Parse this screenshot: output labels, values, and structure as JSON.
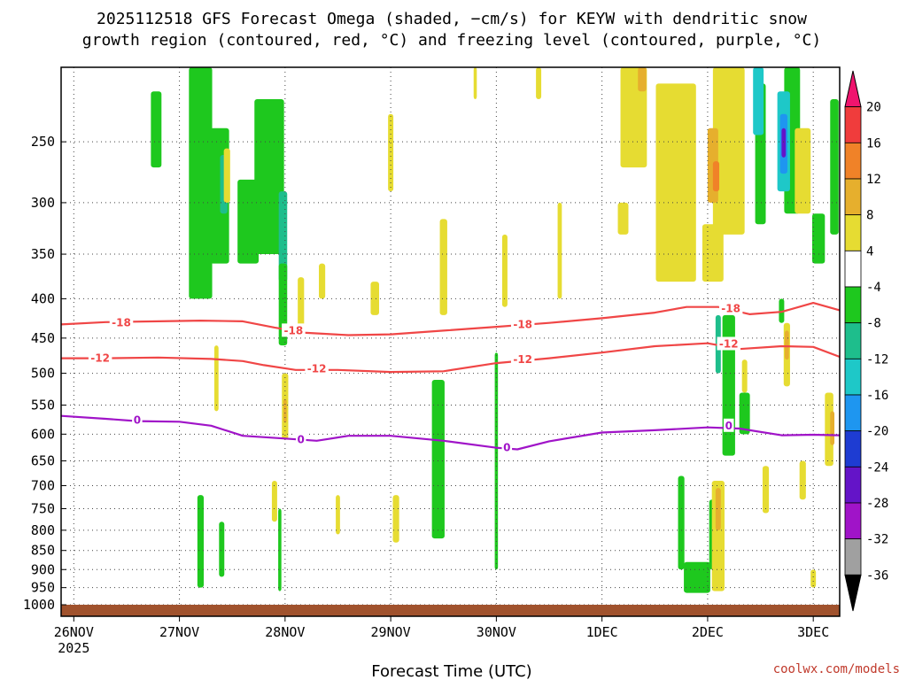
{
  "title_lines": [
    "2025112518 GFS Forecast Omega (shaded, −cm/s) for KEYW with dendritic snow",
    "growth region (contoured, red, °C) and freezing level (contoured, purple, °C)"
  ],
  "credit": "coolwx.com/models",
  "chart_data": {
    "type": "heatmap",
    "title": "2025112518 GFS Forecast Omega (shaded, −cm/s) for KEYW with dendritic snow growth region (contoured, red, °C) and freezing level (contoured, purple, °C)",
    "xlabel": "Forecast Time (UTC)",
    "ylabel": "",
    "x_ticks": [
      {
        "label": "26NOV",
        "sub": "2025",
        "day": 0
      },
      {
        "label": "27NOV",
        "day": 1
      },
      {
        "label": "28NOV",
        "day": 2
      },
      {
        "label": "29NOV",
        "day": 3
      },
      {
        "label": "30NOV",
        "day": 4
      },
      {
        "label": "1DEC",
        "day": 5
      },
      {
        "label": "2DEC",
        "day": 6
      },
      {
        "label": "3DEC",
        "day": 7
      }
    ],
    "xlim_days": [
      -0.12,
      7.25
    ],
    "y_ticks": [
      250,
      300,
      350,
      400,
      450,
      500,
      550,
      600,
      650,
      700,
      750,
      800,
      850,
      900,
      950,
      1000
    ],
    "ylim_hpa": [
      200,
      1000
    ],
    "y_scale": "log",
    "grid": true,
    "colorbar": {
      "labels": [
        20,
        16,
        12,
        8,
        4,
        -4,
        -8,
        -12,
        -16,
        -20,
        -24,
        -28,
        -32,
        -36
      ],
      "colors": [
        "#f0146e",
        "#f03c3c",
        "#f08228",
        "#e6af2d",
        "#e6dc32",
        "#ffffff",
        "#1ec81e",
        "#1ebe8c",
        "#1ec8c8",
        "#1e96f0",
        "#1e3cd2",
        "#6414c8",
        "#a014c8",
        "#a0a0a0",
        "#000000"
      ]
    },
    "contours": [
      {
        "level": -18,
        "color": "#f04646",
        "points": [
          [
            -0.12,
            432
          ],
          [
            0.3,
            429
          ],
          [
            0.8,
            428
          ],
          [
            1.2,
            427
          ],
          [
            1.6,
            428
          ],
          [
            1.9,
            436
          ],
          [
            2.2,
            443
          ],
          [
            2.6,
            446
          ],
          [
            3.0,
            445
          ],
          [
            3.5,
            440
          ],
          [
            4.0,
            435
          ],
          [
            4.5,
            430
          ],
          [
            5.0,
            424
          ],
          [
            5.5,
            417
          ],
          [
            5.8,
            410
          ],
          [
            6.1,
            410
          ],
          [
            6.4,
            419
          ],
          [
            6.7,
            416
          ],
          [
            7.0,
            405
          ],
          [
            7.25,
            414
          ]
        ]
      },
      {
        "level": -12,
        "color": "#f04646",
        "points": [
          [
            -0.12,
            478
          ],
          [
            0.3,
            478
          ],
          [
            0.8,
            477
          ],
          [
            1.3,
            479
          ],
          [
            1.6,
            482
          ],
          [
            1.8,
            488
          ],
          [
            2.1,
            495
          ],
          [
            2.5,
            495
          ],
          [
            3.0,
            498
          ],
          [
            3.5,
            497
          ],
          [
            4.0,
            485
          ],
          [
            4.5,
            478
          ],
          [
            5.0,
            470
          ],
          [
            5.5,
            461
          ],
          [
            6.0,
            457
          ],
          [
            6.3,
            465
          ],
          [
            6.7,
            461
          ],
          [
            7.0,
            462
          ],
          [
            7.25,
            476
          ]
        ]
      },
      {
        "level": 0,
        "color": "#a014c8",
        "points": [
          [
            -0.12,
            568
          ],
          [
            0.3,
            573
          ],
          [
            0.6,
            577
          ],
          [
            1.0,
            578
          ],
          [
            1.3,
            585
          ],
          [
            1.6,
            603
          ],
          [
            2.0,
            608
          ],
          [
            2.3,
            612
          ],
          [
            2.6,
            603
          ],
          [
            3.0,
            603
          ],
          [
            3.5,
            612
          ],
          [
            4.0,
            625
          ],
          [
            4.2,
            628
          ],
          [
            4.5,
            613
          ],
          [
            5.0,
            597
          ],
          [
            5.5,
            593
          ],
          [
            6.0,
            588
          ],
          [
            6.3,
            590
          ],
          [
            6.7,
            602
          ],
          [
            7.0,
            601
          ],
          [
            7.25,
            602
          ]
        ]
      }
    ],
    "contour_labels": [
      {
        "text": "-18",
        "day": 0.45,
        "p": 430,
        "color": "#f04646"
      },
      {
        "text": "-18",
        "day": 2.08,
        "p": 440,
        "color": "#f04646"
      },
      {
        "text": "-18",
        "day": 4.25,
        "p": 432,
        "color": "#f04646"
      },
      {
        "text": "-18",
        "day": 6.22,
        "p": 412,
        "color": "#f04646"
      },
      {
        "text": "-12",
        "day": 0.25,
        "p": 478,
        "color": "#f04646"
      },
      {
        "text": "-12",
        "day": 2.3,
        "p": 493,
        "color": "#f04646"
      },
      {
        "text": "-12",
        "day": 4.25,
        "p": 480,
        "color": "#f04646"
      },
      {
        "text": "-12",
        "day": 6.2,
        "p": 458,
        "color": "#f04646"
      },
      {
        "text": "0",
        "day": 0.6,
        "p": 575,
        "color": "#a014c8"
      },
      {
        "text": "0",
        "day": 2.15,
        "p": 610,
        "color": "#a014c8"
      },
      {
        "text": "0",
        "day": 4.1,
        "p": 625,
        "color": "#a014c8"
      },
      {
        "text": "0",
        "day": 6.2,
        "p": 585,
        "color": "#a014c8"
      }
    ],
    "shaded_regions": [
      {
        "color": "#1ec81e",
        "day": 1.2,
        "p1": 200,
        "p2": 400,
        "w": 0.22
      },
      {
        "color": "#1ec81e",
        "day": 1.85,
        "p1": 220,
        "p2": 350,
        "w": 0.28
      },
      {
        "color": "#1ec81e",
        "day": 1.38,
        "p1": 240,
        "p2": 360,
        "w": 0.18
      },
      {
        "color": "#1ebe8c",
        "day": 1.42,
        "p1": 260,
        "p2": 310,
        "w": 0.07
      },
      {
        "color": "#1ebe8c",
        "day": 1.98,
        "p1": 290,
        "p2": 380,
        "w": 0.08
      },
      {
        "color": "#1ec81e",
        "day": 1.65,
        "p1": 280,
        "p2": 360,
        "w": 0.2
      },
      {
        "color": "#1ec81e",
        "day": 0.78,
        "p1": 215,
        "p2": 270,
        "w": 0.1
      },
      {
        "color": "#1ec81e",
        "day": 1.98,
        "p1": 360,
        "p2": 460,
        "w": 0.08
      },
      {
        "color": "#1ec81e",
        "day": 3.45,
        "p1": 510,
        "p2": 820,
        "w": 0.12
      },
      {
        "color": "#1ec81e",
        "day": 4.0,
        "p1": 470,
        "p2": 900,
        "w": 0.03
      },
      {
        "color": "#1ec81e",
        "day": 1.2,
        "p1": 720,
        "p2": 950,
        "w": 0.06
      },
      {
        "color": "#1ec81e",
        "day": 1.4,
        "p1": 780,
        "p2": 920,
        "w": 0.05
      },
      {
        "color": "#1ec81e",
        "day": 1.95,
        "p1": 750,
        "p2": 960,
        "w": 0.03
      },
      {
        "color": "#1ec81e",
        "day": 5.75,
        "p1": 680,
        "p2": 900,
        "w": 0.06
      },
      {
        "color": "#1ec81e",
        "day": 5.9,
        "p1": 880,
        "p2": 965,
        "w": 0.25
      },
      {
        "color": "#1ec81e",
        "day": 6.05,
        "p1": 730,
        "p2": 900,
        "w": 0.07
      },
      {
        "color": "#1ec81e",
        "day": 6.2,
        "p1": 420,
        "p2": 640,
        "w": 0.12
      },
      {
        "color": "#1ec81e",
        "day": 6.35,
        "p1": 530,
        "p2": 600,
        "w": 0.1
      },
      {
        "color": "#1ec81e",
        "day": 6.5,
        "p1": 210,
        "p2": 320,
        "w": 0.1
      },
      {
        "color": "#1ec81e",
        "day": 6.8,
        "p1": 200,
        "p2": 310,
        "w": 0.15
      },
      {
        "color": "#1ec81e",
        "day": 7.05,
        "p1": 310,
        "p2": 360,
        "w": 0.12
      },
      {
        "color": "#1ec81e",
        "day": 7.2,
        "p1": 220,
        "p2": 330,
        "w": 0.08
      },
      {
        "color": "#1ec81e",
        "day": 6.7,
        "p1": 400,
        "p2": 430,
        "w": 0.05
      },
      {
        "color": "#1ebe8c",
        "day": 6.1,
        "p1": 420,
        "p2": 500,
        "w": 0.05
      },
      {
        "color": "#1ec8c8",
        "day": 6.48,
        "p1": 200,
        "p2": 245,
        "w": 0.1
      },
      {
        "color": "#1ec8c8",
        "day": 6.72,
        "p1": 215,
        "p2": 290,
        "w": 0.12
      },
      {
        "color": "#1e96f0",
        "day": 6.72,
        "p1": 230,
        "p2": 275,
        "w": 0.07
      },
      {
        "color": "#6414c8",
        "day": 6.72,
        "p1": 240,
        "p2": 262,
        "w": 0.04
      },
      {
        "color": "#e6dc32",
        "day": 1.45,
        "p1": 255,
        "p2": 300,
        "w": 0.06
      },
      {
        "color": "#e6dc32",
        "day": 2.15,
        "p1": 375,
        "p2": 440,
        "w": 0.06
      },
      {
        "color": "#e6dc32",
        "day": 2.35,
        "p1": 360,
        "p2": 400,
        "w": 0.06
      },
      {
        "color": "#e6dc32",
        "day": 2.85,
        "p1": 380,
        "p2": 420,
        "w": 0.08
      },
      {
        "color": "#e6dc32",
        "day": 3.5,
        "p1": 315,
        "p2": 420,
        "w": 0.07
      },
      {
        "color": "#e6dc32",
        "day": 3.0,
        "p1": 230,
        "p2": 290,
        "w": 0.05
      },
      {
        "color": "#e6dc32",
        "day": 4.08,
        "p1": 330,
        "p2": 410,
        "w": 0.05
      },
      {
        "color": "#e6dc32",
        "day": 4.4,
        "p1": 200,
        "p2": 220,
        "w": 0.05
      },
      {
        "color": "#e6dc32",
        "day": 4.6,
        "p1": 300,
        "p2": 400,
        "w": 0.04
      },
      {
        "color": "#e6dc32",
        "day": 3.8,
        "p1": 200,
        "p2": 220,
        "w": 0.03
      },
      {
        "color": "#e6dc32",
        "day": 1.35,
        "p1": 460,
        "p2": 560,
        "w": 0.04
      },
      {
        "color": "#e6dc32",
        "day": 2.0,
        "p1": 500,
        "p2": 610,
        "w": 0.06
      },
      {
        "color": "#e6dc32",
        "day": 3.05,
        "p1": 720,
        "p2": 830,
        "w": 0.06
      },
      {
        "color": "#e6dc32",
        "day": 1.9,
        "p1": 690,
        "p2": 780,
        "w": 0.05
      },
      {
        "color": "#e6dc32",
        "day": 2.5,
        "p1": 720,
        "p2": 810,
        "w": 0.04
      },
      {
        "color": "#e6dc32",
        "day": 5.3,
        "p1": 200,
        "p2": 270,
        "w": 0.25
      },
      {
        "color": "#e6dc32",
        "day": 5.7,
        "p1": 210,
        "p2": 380,
        "w": 0.38
      },
      {
        "color": "#e6dc32",
        "day": 6.2,
        "p1": 200,
        "p2": 330,
        "w": 0.3
      },
      {
        "color": "#e6dc32",
        "day": 6.05,
        "p1": 320,
        "p2": 380,
        "w": 0.2
      },
      {
        "color": "#e6dc32",
        "day": 6.9,
        "p1": 240,
        "p2": 310,
        "w": 0.15
      },
      {
        "color": "#e6dc32",
        "day": 5.2,
        "p1": 300,
        "p2": 330,
        "w": 0.1
      },
      {
        "color": "#e6dc32",
        "day": 6.9,
        "p1": 650,
        "p2": 730,
        "w": 0.06
      },
      {
        "color": "#e6dc32",
        "day": 7.15,
        "p1": 530,
        "p2": 660,
        "w": 0.08
      },
      {
        "color": "#e6dc32",
        "day": 6.35,
        "p1": 480,
        "p2": 530,
        "w": 0.05
      },
      {
        "color": "#e6dc32",
        "day": 6.1,
        "p1": 690,
        "p2": 960,
        "w": 0.12
      },
      {
        "color": "#e6dc32",
        "day": 6.55,
        "p1": 660,
        "p2": 760,
        "w": 0.06
      },
      {
        "color": "#e6dc32",
        "day": 6.75,
        "p1": 430,
        "p2": 520,
        "w": 0.06
      },
      {
        "color": "#e6dc32",
        "day": 7.0,
        "p1": 900,
        "p2": 950,
        "w": 0.05
      },
      {
        "color": "#e6af2d",
        "day": 6.05,
        "p1": 240,
        "p2": 300,
        "w": 0.1
      },
      {
        "color": "#e6af2d",
        "day": 5.38,
        "p1": 200,
        "p2": 215,
        "w": 0.08
      },
      {
        "color": "#e6af2d",
        "day": 6.1,
        "p1": 705,
        "p2": 800,
        "w": 0.05
      },
      {
        "color": "#e6af2d",
        "day": 6.75,
        "p1": 440,
        "p2": 480,
        "w": 0.04
      },
      {
        "color": "#e6af2d",
        "day": 7.18,
        "p1": 560,
        "p2": 620,
        "w": 0.04
      },
      {
        "color": "#e6af2d",
        "day": 2.0,
        "p1": 540,
        "p2": 580,
        "w": 0.03
      },
      {
        "color": "#f08228",
        "day": 6.08,
        "p1": 265,
        "p2": 290,
        "w": 0.06
      }
    ]
  }
}
